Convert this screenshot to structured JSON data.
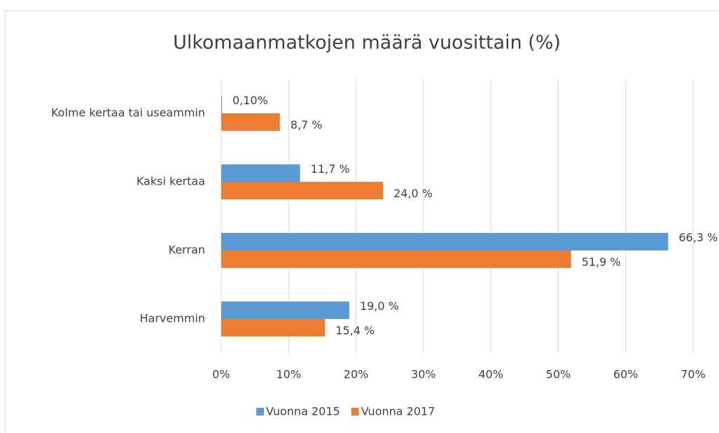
{
  "chart_data": {
    "type": "hbar",
    "title": "Ulkomaanmatkojen määrä vuosittain (%)",
    "categories": [
      "Kolme kertaa tai useammin",
      "Kaksi kertaa",
      "Kerran",
      "Harvemmin"
    ],
    "series": [
      {
        "name": "Vuonna 2015",
        "color": "#5b9bd5",
        "values": [
          0.1,
          11.7,
          66.3,
          19.0
        ],
        "value_labels": [
          "0,10%",
          "11,7 %",
          "66,3 %",
          "19,0 %"
        ]
      },
      {
        "name": "Vuonna 2017",
        "color": "#ed7d31",
        "values": [
          8.7,
          24.0,
          51.9,
          15.4
        ],
        "value_labels": [
          "8,7 %",
          "24,0 %",
          "51,9 %",
          "15,4 %"
        ]
      }
    ],
    "xlim": [
      0,
      70
    ],
    "xticks": [
      {
        "value": 0,
        "label": "0%"
      },
      {
        "value": 10,
        "label": "10%"
      },
      {
        "value": 20,
        "label": "20%"
      },
      {
        "value": 30,
        "label": "30%"
      },
      {
        "value": 40,
        "label": "40%"
      },
      {
        "value": 50,
        "label": "50%"
      },
      {
        "value": 60,
        "label": "60%"
      },
      {
        "value": 70,
        "label": "70%"
      }
    ],
    "grid": true,
    "legend": "bottom"
  }
}
